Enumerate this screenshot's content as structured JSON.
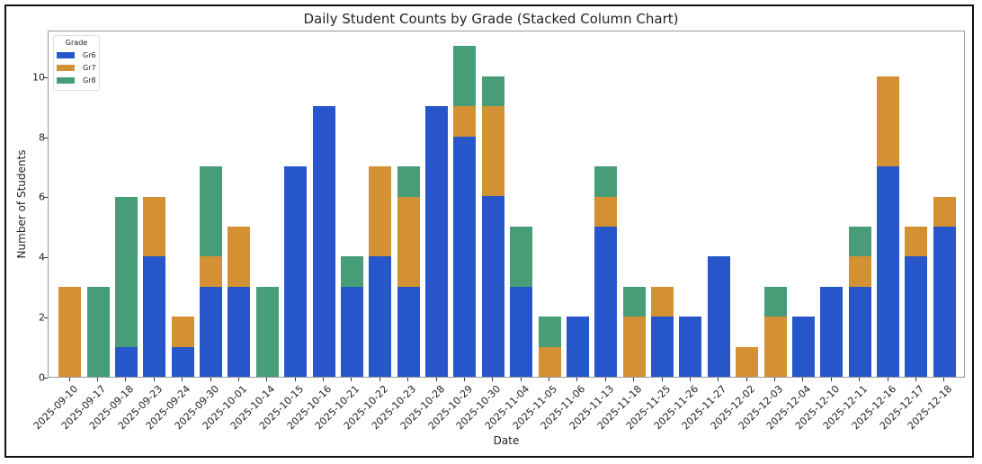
{
  "chart_data": {
    "type": "bar",
    "stacked": true,
    "title": "Daily Student Counts by Grade (Stacked Column Chart)",
    "xlabel": "Date",
    "ylabel": "Number of Students",
    "ylim": [
      0,
      11.55
    ],
    "yticks": [
      0,
      2,
      4,
      6,
      8,
      10
    ],
    "grid": false,
    "legend": {
      "title": "Grade",
      "position": "upper left"
    },
    "categories": [
      "2025-09-10",
      "2025-09-17",
      "2025-09-18",
      "2025-09-23",
      "2025-09-24",
      "2025-09-30",
      "2025-10-01",
      "2025-10-14",
      "2025-10-15",
      "2025-10-16",
      "2025-10-21",
      "2025-10-22",
      "2025-10-23",
      "2025-10-28",
      "2025-10-29",
      "2025-10-30",
      "2025-11-04",
      "2025-11-05",
      "2025-11-06",
      "2025-11-13",
      "2025-11-18",
      "2025-11-25",
      "2025-11-26",
      "2025-11-27",
      "2025-12-02",
      "2025-12-03",
      "2025-12-04",
      "2025-12-10",
      "2025-12-11",
      "2025-12-16",
      "2025-12-17",
      "2025-12-18"
    ],
    "series": [
      {
        "name": "Gr6",
        "color": "#2656c9",
        "values": [
          0,
          0,
          1,
          4,
          1,
          3,
          3,
          0,
          7,
          9,
          3,
          4,
          3,
          9,
          8,
          6,
          3,
          0,
          2,
          5,
          0,
          2,
          2,
          4,
          0,
          0,
          2,
          3,
          3,
          7,
          4,
          5
        ]
      },
      {
        "name": "Gr7",
        "color": "#d39133",
        "values": [
          3,
          0,
          0,
          2,
          1,
          1,
          2,
          0,
          0,
          0,
          0,
          3,
          3,
          0,
          1,
          3,
          0,
          1,
          0,
          1,
          2,
          1,
          0,
          0,
          1,
          2,
          0,
          0,
          1,
          3,
          1,
          1
        ]
      },
      {
        "name": "Gr8",
        "color": "#469d77",
        "values": [
          0,
          3,
          5,
          0,
          0,
          3,
          0,
          3,
          0,
          0,
          1,
          0,
          1,
          0,
          2,
          1,
          2,
          1,
          0,
          1,
          1,
          0,
          0,
          0,
          0,
          1,
          0,
          0,
          1,
          0,
          0,
          0
        ]
      }
    ]
  }
}
